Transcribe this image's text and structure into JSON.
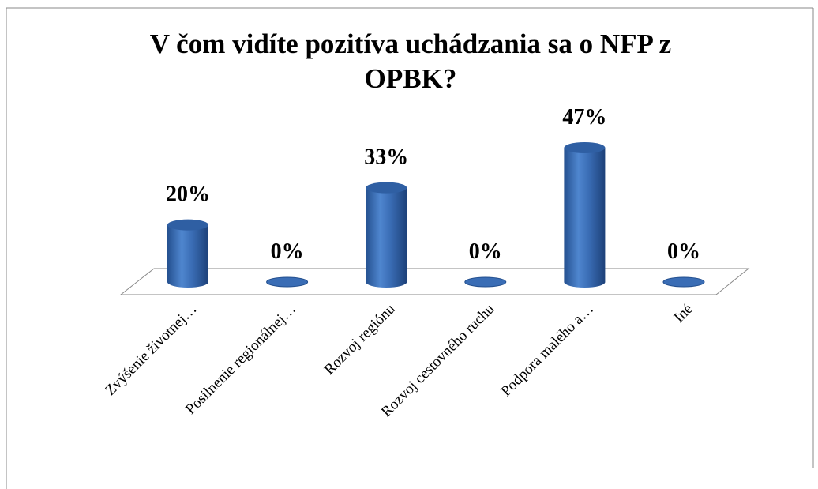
{
  "chart_data": {
    "type": "bar3d",
    "title": "V čom vidíte pozitíva uchádzania sa o NFP z OPBK?",
    "categories": [
      "Zvýšenie životnej…",
      "Posilnenie regionálnej…",
      "Rozvoj regiónu",
      "Rozvoj cestovného ruchu",
      "Podpora malého a…",
      "Iné"
    ],
    "values": [
      20,
      0,
      33,
      0,
      47,
      0
    ],
    "value_labels": [
      "20%",
      "0%",
      "33%",
      "0%",
      "47%",
      "0%"
    ],
    "color": "#3a6db5"
  }
}
